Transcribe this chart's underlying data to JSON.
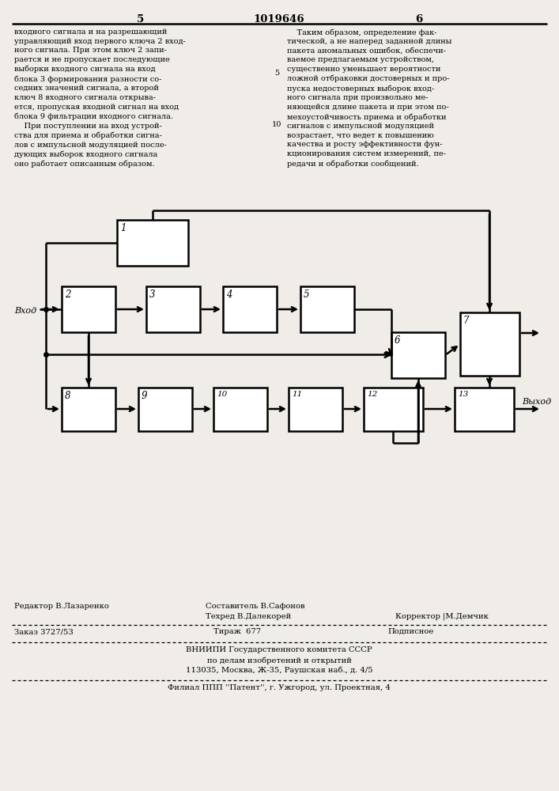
{
  "page_number_left": "5",
  "page_number_center": "1019646",
  "page_number_right": "6",
  "text_left": "входного сигнала и на разрешающий\nуправляющий вход первого ключа 2 вход-\nного сигнала. При этом ключ 2 запи-\nрается и не пропускает последующие\nвыборки входного сигнала на вход\nблока 3 формирования разности со-\nседних значений сигнала, а второй\nключ 8 входного сигнала открыва-\nется, пропуская входной сигнал на вход\nблока 9 фильтрации входного сигнала.\n    При поступлении на вход устрой-\nства для приема и обработки сигна-\nлов с импульсной модуляцией после-\nдующих выборок входного сигнала\nоно работает описанным образом.",
  "text_right": "    Таким образом, определение фак-\nтической, а не наперед заданной длины\nпакета аномальных ошибок, обеспечи-\nваемое предлагаемым устройством,\nсущественно уменьшает вероятности\nложной отбраковки достоверных и про-\nпуска недостоверных выборок вход-\nного сигнала при произвольно ме-\nняющейся длине пакета и при этом по-\nмехоустойчивость приема и обработки\nсигналов с импульсной модуляцией\nвозрастает, что ведет к повышению\nкачества и росту эффективности фун-\nкционирования систем измерений, пе-\nредачи и обработки сообщений.",
  "input_label": "Вход",
  "output_label_bottom": "Выход",
  "editor_line": "Редактор В.Лазаренко",
  "compiler_line1": "Составитель В.Сафонов",
  "compiler_line2": "Техред В.Далекорей",
  "corrector_line": "Корректор |М.Демчик",
  "order_line": "Заказ 3727/53",
  "tirazh_line": "Тираж  677",
  "podpisnoe_line": "Подписное",
  "vnipi_line1": "ВНИИПИ Государственного комитета СССР",
  "vnipi_line2": "по делам изобретений и открытий",
  "vnipi_line3": "113035, Москва, Ж-35, Раушская наб., д. 4/5",
  "filial_line": "Филиал ППП ''Патент'', г. Ужгород, ул. Проектная, 4",
  "bg_color": "#f0ede8",
  "box_color": "#000000",
  "text_color": "#000000"
}
